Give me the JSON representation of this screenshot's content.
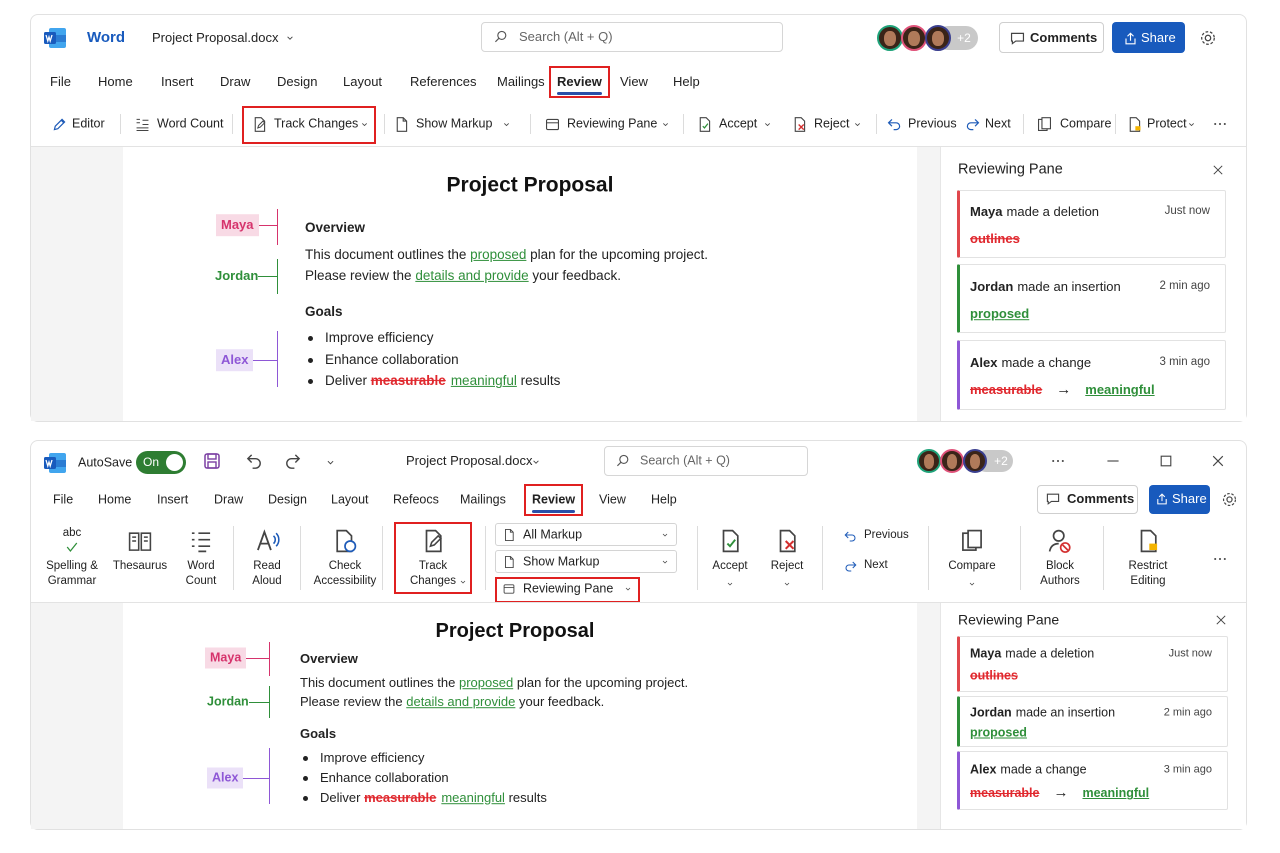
{
  "windows": [
    {
      "app": "Word",
      "file_name": "Project Proposal.docx",
      "search": "Search (Alt + Q)",
      "collaborators_more": "+2",
      "comments": "Comments",
      "share": "Share",
      "tabs": [
        "File",
        "Home",
        "Insert",
        "Draw",
        "Design",
        "Layout",
        "References",
        "Mailings",
        "Review",
        "View",
        "Help"
      ],
      "active_tab": 8,
      "toolbar": [
        {
          "label": "Editor"
        },
        {
          "label": "Word Count"
        },
        {
          "label": "Track Changes",
          "dropdown": true,
          "highlighted": true
        },
        {
          "label": "Show Markup",
          "dropdown": true
        },
        {
          "label": "Reviewing Pane",
          "dropdown": true
        },
        {
          "label": "Accept",
          "dropdown": true
        },
        {
          "label": "Reject",
          "dropdown": true
        },
        {
          "label": "Previous"
        },
        {
          "label": "Next"
        },
        {
          "label": "Compare"
        },
        {
          "label": "Protect",
          "dropdown": true
        }
      ],
      "document": {
        "title": "Project Proposal",
        "authors": [
          {
            "name": "Maya",
            "color": "#d6336c",
            "boxed": true
          },
          {
            "name": "Jordan",
            "color": "#2f8f3a",
            "boxed": false
          },
          {
            "name": "Alex",
            "color": "#8e57d6",
            "boxed": true
          }
        ],
        "sections": [
          {
            "heading": "Overview",
            "paragraphs": [
              [
                {
                  "text": "This document outlines the "
                },
                {
                  "text": "proposed",
                  "mark": "insert"
                },
                {
                  "text": " plan for the upcoming project."
                }
              ],
              [
                {
                  "text": "Please review the "
                },
                {
                  "text": "details and provide",
                  "mark": "insert"
                },
                {
                  "text": " your feedback."
                }
              ]
            ]
          },
          {
            "heading": "Goals",
            "bullets": [
              [
                {
                  "text": "Improve efficiency"
                }
              ],
              [
                {
                  "text": "Enhance collaboration"
                }
              ],
              [
                {
                  "text": "Deliver "
                },
                {
                  "text": "measurable",
                  "mark": "delete"
                },
                {
                  "text": "meaningful",
                  "mark": "insert"
                },
                {
                  "text": " results"
                }
              ]
            ]
          }
        ]
      },
      "reviewing_pane": {
        "title": "Reviewing Pane",
        "items": [
          {
            "author": "Maya",
            "action": "made a deletion",
            "time": "Just now",
            "color": "#e0474c",
            "deleted": "outlines"
          },
          {
            "author": "Jordan",
            "action": "made an insertion",
            "time": "2 min ago",
            "color": "#2f8f3a",
            "inserted": "proposed"
          },
          {
            "author": "Alex",
            "action": "made a change",
            "time": "3 min ago",
            "color": "#8e57d6",
            "deleted": "measurable",
            "arrow": "→",
            "inserted": "meaningful"
          }
        ]
      }
    },
    {
      "autosave": "AutoSave",
      "autosave_state": "On",
      "file_name": "Project Proposal.docx",
      "search": "Search (Alt + Q)",
      "collaborators_more": "+2",
      "comments": "Comments",
      "share": "Share",
      "tabs": [
        "File",
        "Home",
        "Insert",
        "Draw",
        "Design",
        "Layout",
        "Refeocs",
        "Mailings",
        "Review",
        "View",
        "Help"
      ],
      "active_tab": 8,
      "ribbon": [
        {
          "label": [
            "Spelling &",
            "Grammar"
          ],
          "icon_text": "abc"
        },
        {
          "label": [
            "Thesaurus"
          ]
        },
        {
          "label": [
            "Word",
            "Count"
          ]
        },
        {
          "label": [
            "Read",
            "Aloud"
          ]
        },
        {
          "label": [
            "Check",
            "Accessibility"
          ]
        },
        {
          "label": [
            "Track",
            "Changes"
          ],
          "dropdown": true,
          "highlighted": true
        },
        {
          "label": [
            "All Markup"
          ],
          "dropdown": true
        },
        {
          "label": [
            "Show Markup"
          ],
          "dropdown": true
        },
        {
          "label": [
            "Reviewing Pane"
          ],
          "dropdown": true,
          "highlighted": true
        },
        {
          "label": [
            "Accept"
          ],
          "dropdown": true
        },
        {
          "label": [
            "Reject"
          ],
          "dropdown": true
        },
        {
          "label": [
            "Previous"
          ]
        },
        {
          "label": [
            "Next"
          ]
        },
        {
          "label": [
            "Compare"
          ],
          "dropdown": true
        },
        {
          "label": [
            "Block",
            "Authors"
          ]
        },
        {
          "label": [
            "Restrict",
            "Editing"
          ]
        }
      ],
      "document": {
        "title": "Project Proposal",
        "authors": [
          {
            "name": "Maya",
            "color": "#d6336c",
            "boxed": true
          },
          {
            "name": "Jordan",
            "color": "#2f8f3a",
            "boxed": false
          },
          {
            "name": "Alex",
            "color": "#8e57d6",
            "boxed": true
          }
        ],
        "sections": [
          {
            "heading": "Overview",
            "paragraphs": [
              [
                {
                  "text": "This document outlines the "
                },
                {
                  "text": "proposed",
                  "mark": "insert"
                },
                {
                  "text": " plan for the upcoming project."
                }
              ],
              [
                {
                  "text": "Please review the "
                },
                {
                  "text": "details and provide",
                  "mark": "insert"
                },
                {
                  "text": " your feedback."
                }
              ]
            ]
          },
          {
            "heading": "Goals",
            "bullets": [
              [
                {
                  "text": "Improve efficiency"
                }
              ],
              [
                {
                  "text": "Enhance collaboration"
                }
              ],
              [
                {
                  "text": "Deliver "
                },
                {
                  "text": "measurable",
                  "mark": "delete"
                },
                {
                  "text": "meaningful",
                  "mark": "insert"
                },
                {
                  "text": " results"
                }
              ]
            ]
          }
        ]
      },
      "reviewing_pane": {
        "title": "Reviewing Pane",
        "items": [
          {
            "author": "Maya",
            "action": "made a deletion",
            "time": "Just now",
            "color": "#e0474c",
            "deleted": "outlines"
          },
          {
            "author": "Jordan",
            "action": "made an insertion",
            "time": "2 min ago",
            "color": "#2f8f3a",
            "inserted": "proposed"
          },
          {
            "author": "Alex",
            "action": "made a change",
            "time": "3 min ago",
            "color": "#8e57d6",
            "deleted": "measurable",
            "arrow": "→",
            "inserted": "meaningful"
          }
        ]
      }
    }
  ]
}
